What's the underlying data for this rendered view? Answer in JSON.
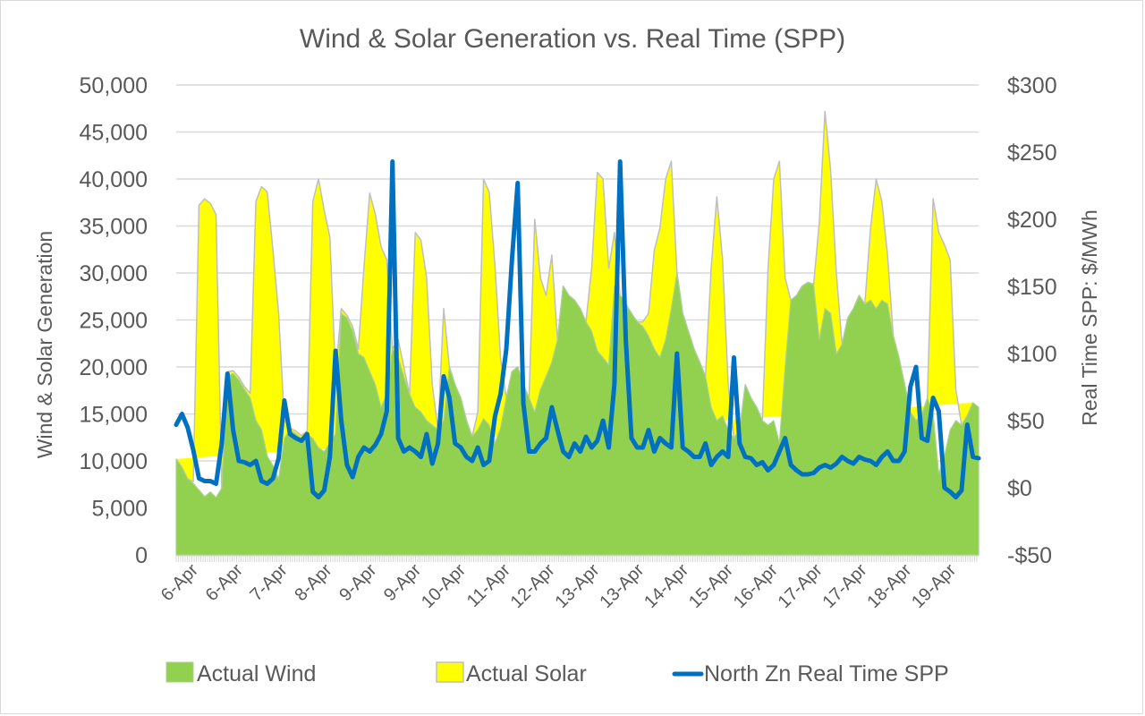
{
  "chart_data": {
    "type": "area",
    "title": "Wind & Solar Generation vs. Real Time (SPP)",
    "ylabel": "Wind & Solar Generation",
    "y2label": "Real Time SPP: $/MWh",
    "xlabel": "",
    "ylim": [
      0,
      50000
    ],
    "y2lim": [
      -50,
      300
    ],
    "yticks": [
      "0",
      "5,000",
      "10,000",
      "15,000",
      "20,000",
      "25,000",
      "30,000",
      "35,000",
      "40,000",
      "45,000",
      "50,000"
    ],
    "ytick_values": [
      0,
      5000,
      10000,
      15000,
      20000,
      25000,
      30000,
      35000,
      40000,
      45000,
      50000
    ],
    "y2ticks": [
      "-$50",
      "$0",
      "$50",
      "$100",
      "$150",
      "$200",
      "$250",
      "$300"
    ],
    "y2tick_values": [
      -50,
      0,
      50,
      100,
      150,
      200,
      250,
      300
    ],
    "grid": true,
    "stacked": true,
    "legend_position": "bottom",
    "xtick_labels": [
      "6-Apr",
      "6-Apr",
      "7-Apr",
      "8-Apr",
      "9-Apr",
      "9-Apr",
      "10-Apr",
      "11-Apr",
      "12-Apr",
      "13-Apr",
      "13-Apr",
      "14-Apr",
      "15-Apr",
      "16-Apr",
      "17-Apr",
      "17-Apr",
      "18-Apr",
      "19-Apr"
    ],
    "series": [
      {
        "name": "Actual Wind",
        "kind": "area",
        "axis": "left",
        "color": "#92d050",
        "values": [
          10200,
          9300,
          8100,
          7600,
          6900,
          6200,
          6700,
          6100,
          7100,
          19000,
          19300,
          18600,
          17600,
          16700,
          14300,
          13300,
          10500,
          9500,
          8100,
          12400,
          13300,
          12900,
          12400,
          12900,
          12400,
          11400,
          11000,
          11900,
          12900,
          25700,
          25200,
          23800,
          21400,
          21000,
          19500,
          18100,
          15700,
          17100,
          21900,
          21000,
          19000,
          17100,
          15700,
          15200,
          14300,
          13800,
          13300,
          14300,
          20000,
          18100,
          16700,
          14300,
          12600,
          13300,
          14500,
          13800,
          11900,
          13500,
          16700,
          19500,
          20000,
          18100,
          16700,
          15200,
          17600,
          19000,
          20500,
          22900,
          28600,
          27600,
          27100,
          26200,
          24800,
          23800,
          21700,
          21000,
          20200,
          28600,
          27600,
          26700,
          25700,
          24800,
          24300,
          23300,
          21900,
          21000,
          22900,
          26200,
          30000,
          25700,
          23800,
          21900,
          20500,
          19000,
          15700,
          14300,
          14800,
          13300,
          12400,
          13300,
          18100,
          16700,
          15700,
          14300,
          13800,
          14300,
          11900,
          20000,
          27100,
          27600,
          28600,
          29000,
          28800,
          22900,
          26200,
          25700,
          21400,
          22400,
          25200,
          26200,
          27600,
          26700,
          27100,
          26200,
          27100,
          26700,
          23300,
          21000,
          18100,
          15200,
          14300,
          14800,
          16700,
          15000,
          8600,
          10500,
          13300,
          14300,
          13800,
          14800,
          16200,
          15700
        ]
      },
      {
        "name": "Actual Solar",
        "kind": "area",
        "axis": "left",
        "color": "#ffff00",
        "values": [
          0,
          0,
          0,
          200,
          30300,
          31700,
          30700,
          30100,
          0,
          500,
          300,
          300,
          300,
          500,
          23300,
          25900,
          28100,
          22900,
          17600,
          1900,
          200,
          300,
          300,
          300,
          25200,
          28600,
          25700,
          21900,
          6200,
          500,
          300,
          500,
          500,
          9700,
          19000,
          18100,
          17100,
          14300,
          0,
          1900,
          1000,
          0,
          18600,
          18300,
          15200,
          4300,
          0,
          11900,
          0,
          0,
          0,
          0,
          0,
          1900,
          25500,
          24800,
          19000,
          7400,
          0,
          0,
          0,
          0,
          0,
          20500,
          11900,
          8600,
          11400,
          0,
          0,
          0,
          0,
          0,
          0,
          6700,
          19000,
          19000,
          10300,
          5700,
          0,
          0,
          0,
          0,
          500,
          2400,
          10500,
          13800,
          17100,
          15700,
          0,
          0,
          0,
          0,
          0,
          0,
          14800,
          23800,
          16700,
          4800,
          0,
          0,
          0,
          0,
          0,
          0,
          16700,
          25700,
          30000,
          9500,
          0,
          0,
          0,
          0,
          0,
          12400,
          21000,
          15200,
          8600,
          0,
          0,
          0,
          0,
          0,
          7600,
          13800,
          10500,
          5200,
          0,
          0,
          0,
          0,
          0,
          0,
          0,
          22900,
          25700,
          22500,
          18100,
          3300,
          0,
          0,
          0
        ]
      },
      {
        "name": "North Zn Real Time SPP",
        "kind": "line",
        "axis": "right",
        "color": "#0070c0",
        "values": [
          47,
          55,
          45,
          28,
          7,
          5,
          5,
          3,
          33,
          85,
          43,
          20,
          19,
          17,
          20,
          5,
          3,
          7,
          22,
          65,
          40,
          37,
          35,
          40,
          -3,
          -7,
          -2,
          23,
          102,
          50,
          17,
          8,
          23,
          30,
          27,
          32,
          40,
          57,
          243,
          37,
          27,
          30,
          27,
          23,
          40,
          18,
          33,
          83,
          67,
          33,
          30,
          23,
          20,
          30,
          17,
          20,
          53,
          70,
          103,
          170,
          227,
          63,
          27,
          27,
          33,
          37,
          60,
          43,
          27,
          23,
          33,
          27,
          38,
          30,
          35,
          50,
          30,
          77,
          243,
          110,
          37,
          30,
          30,
          43,
          27,
          37,
          33,
          30,
          100,
          30,
          27,
          23,
          23,
          33,
          17,
          23,
          27,
          23,
          97,
          33,
          23,
          22,
          17,
          19,
          13,
          17,
          27,
          37,
          17,
          13,
          10,
          10,
          11,
          15,
          17,
          15,
          18,
          23,
          20,
          18,
          23,
          21,
          20,
          17,
          23,
          27,
          20,
          20,
          27,
          75,
          90,
          37,
          35,
          67,
          57,
          0,
          -3,
          -7,
          -2,
          47,
          23,
          22
        ]
      }
    ]
  },
  "legend": [
    {
      "label": "Actual Wind",
      "icon": "green-area-swatch"
    },
    {
      "label": "Actual Solar",
      "icon": "yellow-area-swatch"
    },
    {
      "label": "North Zn Real Time SPP",
      "icon": "blue-line-swatch"
    }
  ]
}
